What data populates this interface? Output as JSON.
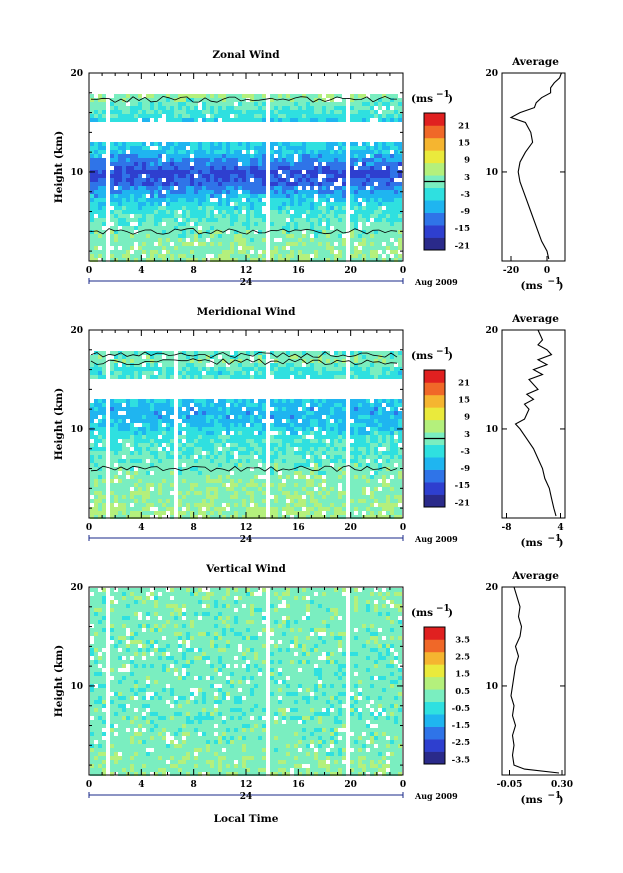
{
  "chart_data": [
    {
      "type": "heatmap",
      "title": "Zonal Wind",
      "ylabel": "Height (km)",
      "xlabel": "",
      "x_ticks": [
        "0",
        "4",
        "8",
        "12",
        "16",
        "20",
        "0"
      ],
      "x_range_hours": [
        0,
        24
      ],
      "day_label": "24",
      "date_label": "Aug 2009",
      "y_ticks": [
        "20",
        "10"
      ],
      "y_range_km": [
        1,
        20
      ],
      "unit_label": "(ms",
      "unit_exponent": "−1",
      "colorbar": {
        "labels": [
          "21",
          "15",
          "9",
          "3",
          "-3",
          "-9",
          "-15",
          "-21"
        ],
        "range": [
          -24,
          24
        ],
        "zero_line": true
      },
      "contour_zero": true,
      "gaps_hours": [
        [
          1.0,
          1.6
        ],
        [
          13.3,
          13.7
        ],
        [
          19.4,
          19.7
        ]
      ],
      "profile_field": [
        {
          "h": 1.5,
          "v": 2
        },
        {
          "h": 3,
          "v": 1
        },
        {
          "h": 5,
          "v": -1
        },
        {
          "h": 7,
          "v": -5
        },
        {
          "h": 9,
          "v": -14
        },
        {
          "h": 10,
          "v": -17
        },
        {
          "h": 11,
          "v": -13
        },
        {
          "h": 12,
          "v": -8
        },
        {
          "h": 13,
          "v": -6
        },
        {
          "h": 14,
          "v": -9
        },
        {
          "h": 15,
          "v": -7
        },
        {
          "h": 16,
          "v": -3
        },
        {
          "h": 17,
          "v": -1
        },
        {
          "h": 18,
          "v": 2
        },
        {
          "h": 19,
          "v": 4
        }
      ],
      "data_bands_km": [
        [
          1,
          13.2
        ],
        [
          15.3,
          18.1
        ]
      ],
      "average": {
        "title": "Average",
        "x_ticks": [
          "-20",
          "0"
        ],
        "x_tick_values": [
          -20,
          0
        ],
        "x_range": [
          -25,
          10
        ],
        "xlabel": "(ms",
        "y_ticks": [
          "20",
          "10"
        ],
        "profile": [
          {
            "h": 1.2,
            "v": 1
          },
          {
            "h": 2,
            "v": 0
          },
          {
            "h": 3,
            "v": -3
          },
          {
            "h": 4,
            "v": -5
          },
          {
            "h": 5,
            "v": -7
          },
          {
            "h": 6,
            "v": -9
          },
          {
            "h": 7,
            "v": -11
          },
          {
            "h": 8,
            "v": -13
          },
          {
            "h": 9,
            "v": -15
          },
          {
            "h": 10,
            "v": -16
          },
          {
            "h": 11,
            "v": -15
          },
          {
            "h": 12,
            "v": -12
          },
          {
            "h": 13,
            "v": -8
          },
          {
            "h": 14,
            "v": -9
          },
          {
            "h": 15,
            "v": -12
          },
          {
            "h": 15.5,
            "v": -20
          },
          {
            "h": 16,
            "v": -15
          },
          {
            "h": 16.5,
            "v": -7
          },
          {
            "h": 17,
            "v": -6
          },
          {
            "h": 17.5,
            "v": -3
          },
          {
            "h": 18,
            "v": 2
          },
          {
            "h": 18.5,
            "v": 2
          },
          {
            "h": 19,
            "v": 4
          },
          {
            "h": 19.5,
            "v": 7
          },
          {
            "h": 20,
            "v": 8
          }
        ]
      }
    },
    {
      "type": "heatmap",
      "title": "Meridional Wind",
      "ylabel": "Height (km)",
      "xlabel": "",
      "x_ticks": [
        "0",
        "4",
        "8",
        "12",
        "16",
        "20",
        "0"
      ],
      "x_range_hours": [
        0,
        24
      ],
      "day_label": "24",
      "date_label": "Aug 2009",
      "y_ticks": [
        "20",
        "10"
      ],
      "y_range_km": [
        1,
        20
      ],
      "unit_label": "(ms",
      "unit_exponent": "−1",
      "colorbar": {
        "labels": [
          "21",
          "15",
          "9",
          "3",
          "-3",
          "-9",
          "-15",
          "-21"
        ],
        "range": [
          -24,
          24
        ],
        "zero_line": true
      },
      "contour_zero": true,
      "gaps_hours": [
        [
          1.0,
          1.6
        ],
        [
          6.3,
          6.6
        ],
        [
          13.3,
          13.7
        ],
        [
          19.4,
          19.7
        ]
      ],
      "profile_field": [
        {
          "h": 1.5,
          "v": 3
        },
        {
          "h": 3,
          "v": 2
        },
        {
          "h": 5,
          "v": 1
        },
        {
          "h": 7,
          "v": -1
        },
        {
          "h": 9,
          "v": -3
        },
        {
          "h": 10,
          "v": -5
        },
        {
          "h": 11,
          "v": -8
        },
        {
          "h": 12,
          "v": -9
        },
        {
          "h": 13,
          "v": -7
        },
        {
          "h": 14,
          "v": -5
        },
        {
          "h": 15,
          "v": -2
        },
        {
          "h": 16,
          "v": -4
        },
        {
          "h": 17,
          "v": 1
        },
        {
          "h": 18,
          "v": -1
        },
        {
          "h": 19,
          "v": 0
        }
      ],
      "data_bands_km": [
        [
          1,
          13.2
        ],
        [
          15.3,
          18.1
        ]
      ],
      "average": {
        "title": "Average",
        "x_ticks": [
          "-8",
          "4"
        ],
        "x_tick_values": [
          -8,
          4
        ],
        "x_range": [
          -9,
          5
        ],
        "xlabel": "(ms",
        "y_ticks": [
          "20",
          "10"
        ],
        "profile": [
          {
            "h": 1.2,
            "v": 3
          },
          {
            "h": 2,
            "v": 2.5
          },
          {
            "h": 3,
            "v": 2
          },
          {
            "h": 4,
            "v": 1.5
          },
          {
            "h": 5,
            "v": 0.5
          },
          {
            "h": 6,
            "v": 0
          },
          {
            "h": 7,
            "v": -1
          },
          {
            "h": 8,
            "v": -2
          },
          {
            "h": 9,
            "v": -3.5
          },
          {
            "h": 10,
            "v": -5
          },
          {
            "h": 10.5,
            "v": -6
          },
          {
            "h": 11,
            "v": -4
          },
          {
            "h": 12,
            "v": -3
          },
          {
            "h": 12.5,
            "v": -4
          },
          {
            "h": 13,
            "v": -2
          },
          {
            "h": 13.5,
            "v": -3.5
          },
          {
            "h": 14,
            "v": -1
          },
          {
            "h": 15,
            "v": -3
          },
          {
            "h": 15.5,
            "v": 0
          },
          {
            "h": 16,
            "v": -2
          },
          {
            "h": 16.5,
            "v": 1
          },
          {
            "h": 17,
            "v": -1
          },
          {
            "h": 17.5,
            "v": 2
          },
          {
            "h": 18,
            "v": 1
          },
          {
            "h": 18.5,
            "v": -1
          },
          {
            "h": 19,
            "v": 0
          },
          {
            "h": 20,
            "v": -1
          }
        ]
      }
    },
    {
      "type": "heatmap",
      "title": "Vertical Wind",
      "ylabel": "Height (km)",
      "xlabel": "Local Time",
      "x_ticks": [
        "0",
        "4",
        "8",
        "12",
        "16",
        "20",
        "0"
      ],
      "x_range_hours": [
        0,
        24
      ],
      "day_label": "24",
      "date_label": "Aug 2009",
      "y_ticks": [
        "20",
        "10"
      ],
      "y_range_km": [
        1,
        20
      ],
      "unit_label": "(ms",
      "unit_exponent": "−1",
      "colorbar": {
        "labels": [
          "3.5",
          "2.5",
          "1.5",
          "0.5",
          "-0.5",
          "-1.5",
          "-2.5",
          "-3.5"
        ],
        "range": [
          -4,
          4
        ],
        "zero_line": false
      },
      "contour_zero": false,
      "gaps_hours": [
        [
          1.0,
          1.6
        ],
        [
          13.3,
          13.7
        ],
        [
          19.4,
          19.7
        ]
      ],
      "profile_field": [
        {
          "h": 1.5,
          "v": 0.2
        },
        {
          "h": 5,
          "v": 0.0
        },
        {
          "h": 10,
          "v": -0.1
        },
        {
          "h": 15,
          "v": 0.0
        },
        {
          "h": 20,
          "v": 0.1
        }
      ],
      "data_bands_km": [
        [
          1,
          20
        ]
      ],
      "average": {
        "title": "Average",
        "x_ticks": [
          "-0.05",
          "0.30"
        ],
        "x_tick_values": [
          -0.05,
          0.3
        ],
        "x_range": [
          -0.1,
          0.32
        ],
        "xlabel": "(ms",
        "y_ticks": [
          "20",
          "10"
        ],
        "profile": [
          {
            "h": 1.2,
            "v": 0.28
          },
          {
            "h": 1.6,
            "v": 0.05
          },
          {
            "h": 2,
            "v": -0.02
          },
          {
            "h": 3,
            "v": -0.03
          },
          {
            "h": 4,
            "v": -0.02
          },
          {
            "h": 5,
            "v": -0.03
          },
          {
            "h": 6,
            "v": -0.01
          },
          {
            "h": 7,
            "v": -0.03
          },
          {
            "h": 8,
            "v": -0.02
          },
          {
            "h": 9,
            "v": -0.04
          },
          {
            "h": 10,
            "v": -0.03
          },
          {
            "h": 11,
            "v": -0.02
          },
          {
            "h": 12,
            "v": -0.01
          },
          {
            "h": 13,
            "v": 0.01
          },
          {
            "h": 14,
            "v": -0.01
          },
          {
            "h": 15,
            "v": 0.02
          },
          {
            "h": 16,
            "v": 0.03
          },
          {
            "h": 17,
            "v": 0.01
          },
          {
            "h": 18,
            "v": 0.02
          },
          {
            "h": 19,
            "v": 0.0
          },
          {
            "h": 20,
            "v": -0.02
          }
        ]
      }
    }
  ],
  "colormap": [
    "#2a2a8a",
    "#2e3fcf",
    "#2f74e8",
    "#1fb5f0",
    "#2fe0e0",
    "#7aeec0",
    "#b4f07c",
    "#eaea3c",
    "#f5b530",
    "#f06828",
    "#e02020"
  ]
}
